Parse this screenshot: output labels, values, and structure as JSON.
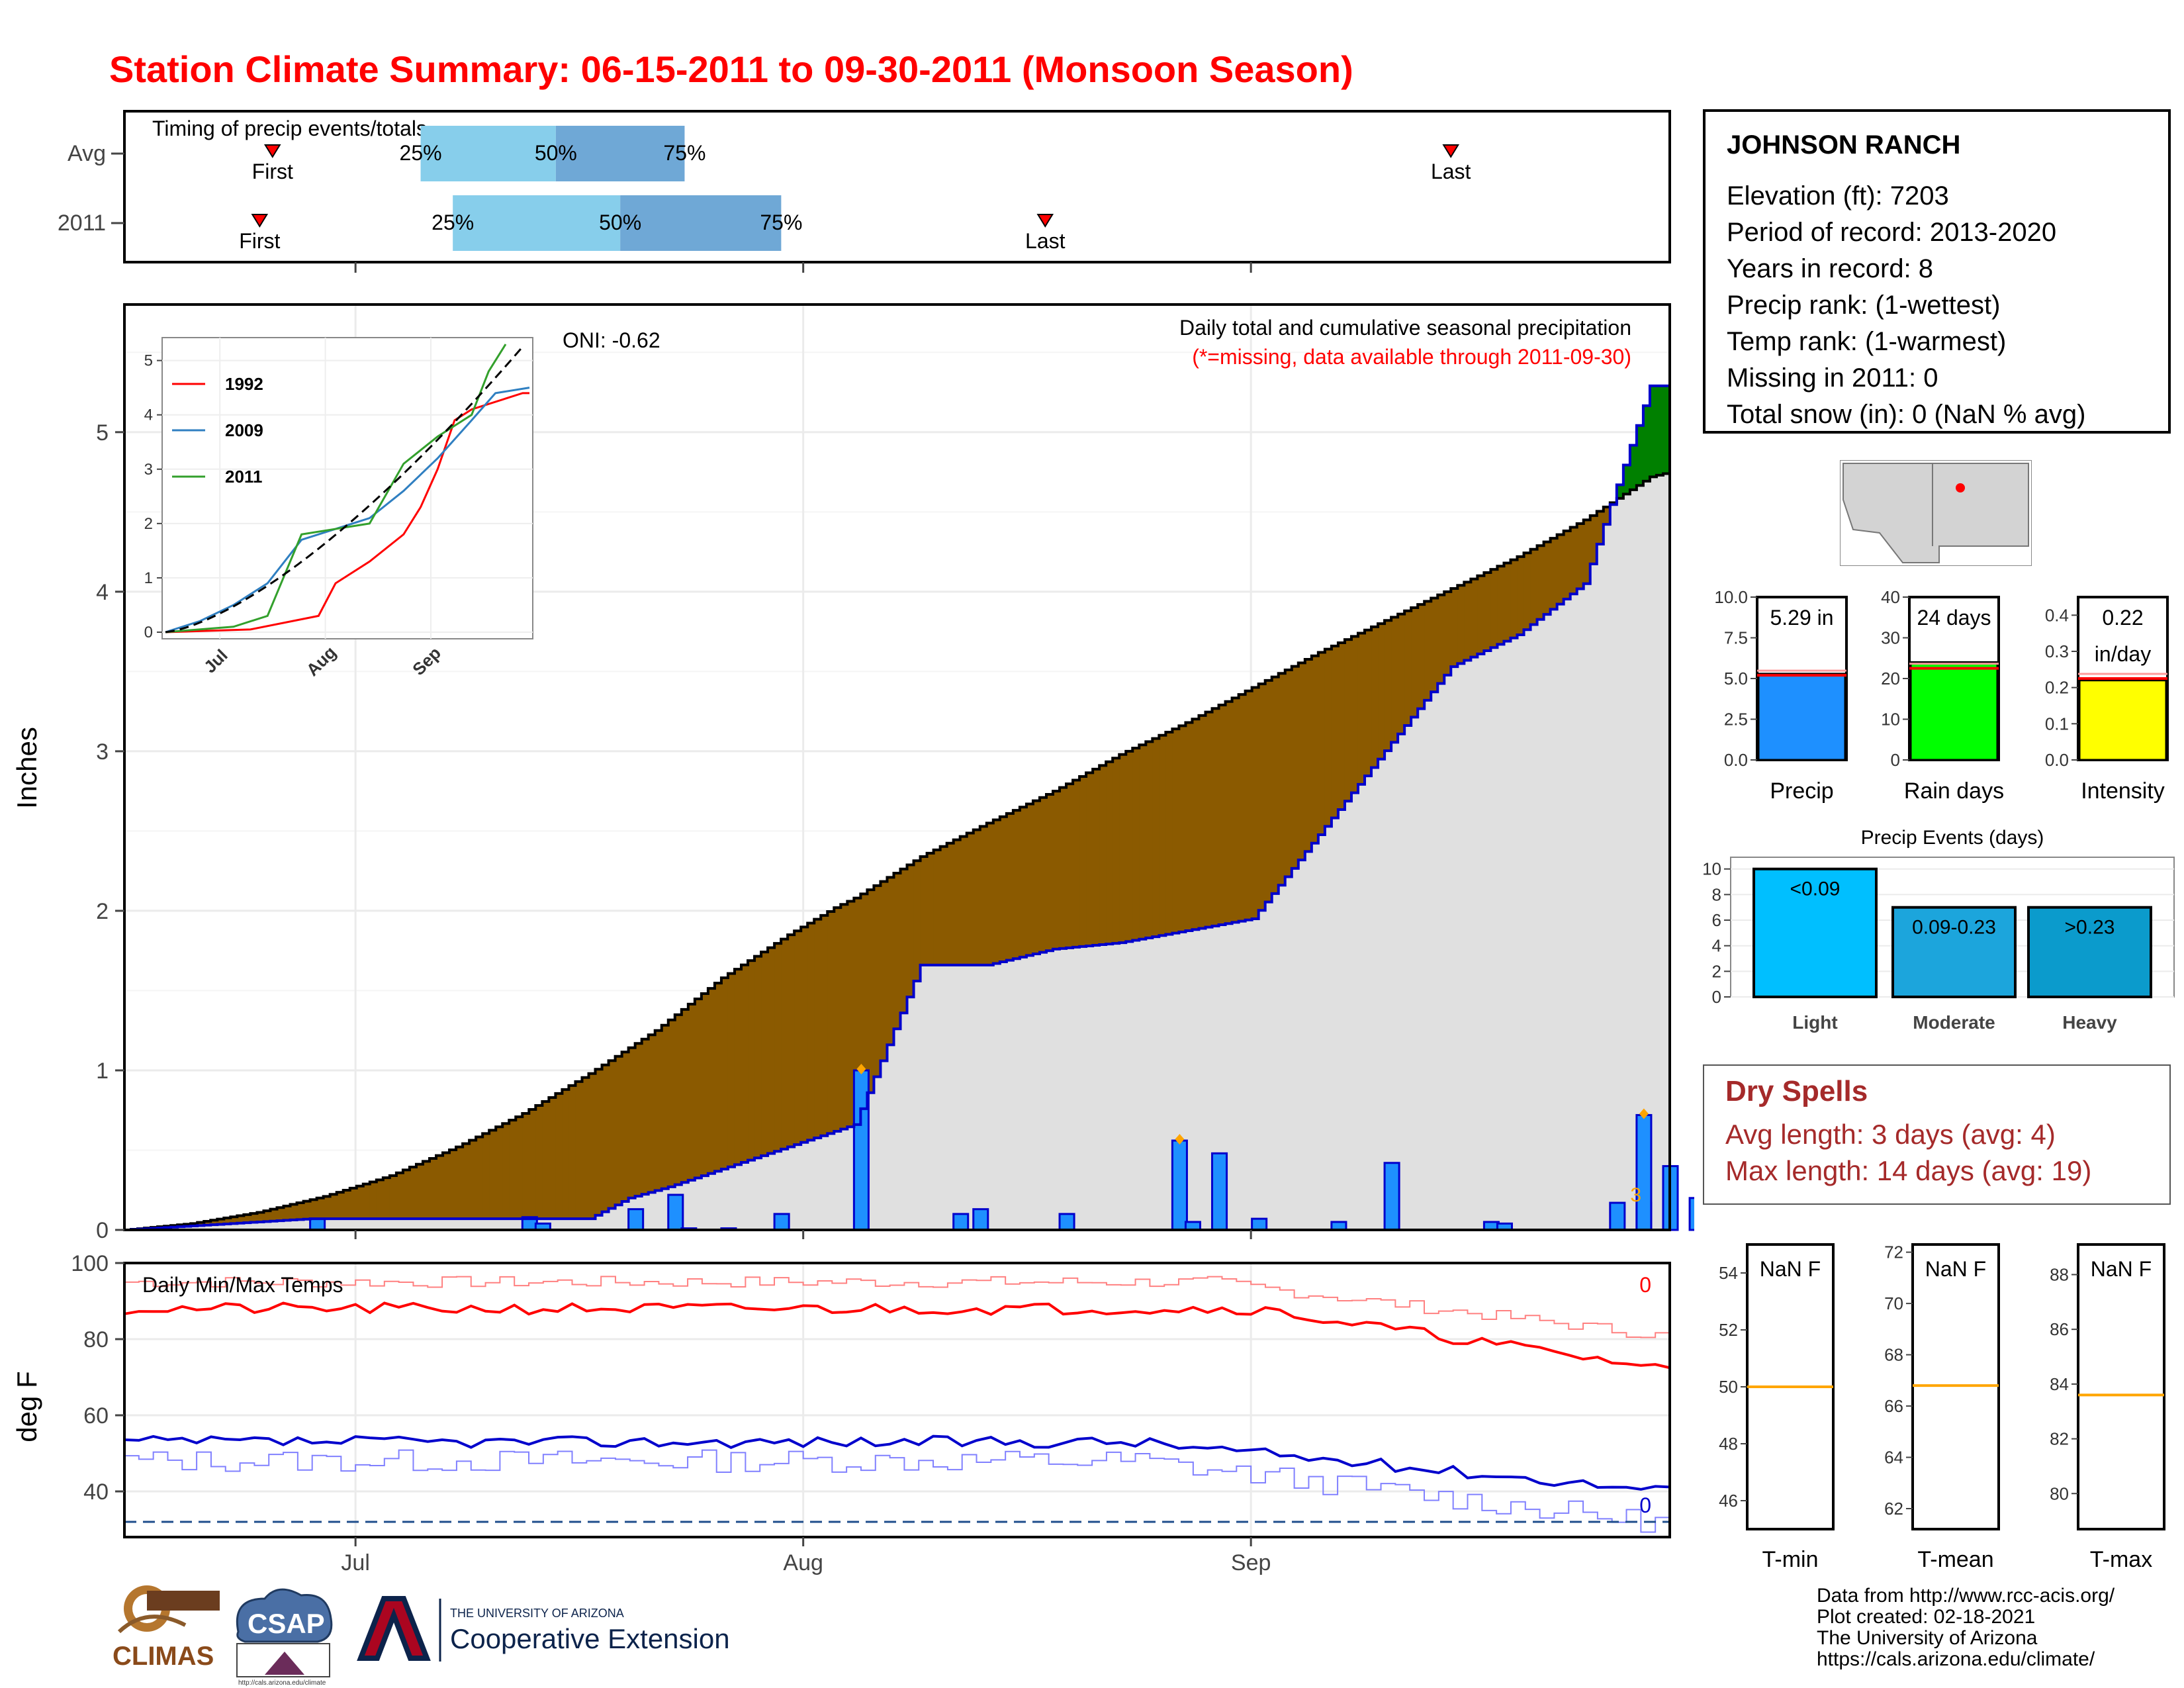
{
  "title": "Station Climate Summary: 06-15-2011 to 09-30-2011 (Monsoon Season)",
  "colors": {
    "title": "#ff0000",
    "brown": "#8b5a00",
    "green": "#008000",
    "blue": "#0000ff",
    "lightblue": "#87ceeb",
    "midblue": "#6fa8d6",
    "bar": "#1e90ff"
  },
  "timing": {
    "label": "Timing of precip events/totals",
    "rows": [
      {
        "name": "Avg",
        "first": "First",
        "last": "Last",
        "p25": "25%",
        "p50": "50%",
        "p75": "75%",
        "first_day": 23,
        "last_day": 206,
        "q25_day": 46,
        "q50_day": 67,
        "q75_day": 87
      },
      {
        "name": "2011",
        "first": "First",
        "last": "Last",
        "p25": "25%",
        "p50": "50%",
        "p75": "75%",
        "first_day": 21,
        "last_day": 143,
        "q25_day": 51,
        "q50_day": 77,
        "q75_day": 102
      }
    ]
  },
  "main": {
    "ylabel": "Inches",
    "title": "Daily total and cumulative seasonal precipitation",
    "subtitle": "(*=missing, data available through 2011-09-30)",
    "oni": "ONI: -0.62",
    "count": "3",
    "x_ticks": [
      "Jul",
      "Aug",
      "Sep"
    ],
    "y_ticks": [
      "0",
      "1",
      "2",
      "3",
      "4",
      "5"
    ]
  },
  "inset": {
    "legend": [
      "1992",
      "2009",
      "2011"
    ],
    "y_ticks": [
      "0",
      "1",
      "2",
      "3",
      "4",
      "5"
    ],
    "x_ticks": [
      "Jul",
      "Aug",
      "Sep"
    ]
  },
  "temps": {
    "label": "Daily Min/Max Temps",
    "ylabel": "deg F",
    "y_ticks": [
      "40",
      "60",
      "80",
      "100"
    ],
    "x_ticks": [
      "Jul",
      "Aug",
      "Sep"
    ],
    "max_count": "0",
    "min_count": "0"
  },
  "station": {
    "name": "JOHNSON RANCH",
    "lines": [
      "Elevation (ft): 7203",
      "Period of record: 2013-2020",
      "Years in record: 8",
      "Precip rank:  (1-wettest)",
      "Temp rank:  (1-warmest)",
      "Missing in 2011: 0",
      "Total snow (in): 0 (NaN % avg)"
    ]
  },
  "gauges": [
    {
      "label": "Precip",
      "value_text": "5.29 in",
      "ticks": [
        "0.0",
        "2.5",
        "5.0",
        "7.5",
        "10.0"
      ],
      "color": "#1e90ff"
    },
    {
      "label": "Rain days",
      "value_text": "24 days",
      "ticks": [
        "0",
        "10",
        "20",
        "30",
        "40"
      ],
      "color": "#00ff00"
    },
    {
      "label": "Intensity",
      "value_text": "0.22\nin/day",
      "ticks": [
        "0.0",
        "0.1",
        "0.2",
        "0.3",
        "0.4"
      ],
      "color": "#ffff00"
    }
  ],
  "events": {
    "title": "Precip Events (days)",
    "ticks": [
      "0",
      "2",
      "4",
      "6",
      "8",
      "10"
    ],
    "bars": [
      {
        "label": "Light",
        "bin": "<0.09",
        "value": 10,
        "color": "#00bfff"
      },
      {
        "label": "Moderate",
        "bin": "0.09-0.23",
        "value": 7,
        "color": "#1ca5dc"
      },
      {
        "label": "Heavy",
        "bin": ">0.23",
        "value": 7,
        "color": "#0b9bcc"
      }
    ]
  },
  "dry": {
    "title": "Dry Spells",
    "avg": "Avg length: 3 days (avg: 4)",
    "max": "Max length: 14 days (avg: 19)"
  },
  "temp_gauges": [
    {
      "label": "T-min",
      "value": "NaN F",
      "ticks": [
        "46",
        "48",
        "50",
        "52",
        "54"
      ]
    },
    {
      "label": "T-mean",
      "value": "NaN F",
      "ticks": [
        "62",
        "64",
        "66",
        "68",
        "70",
        "72"
      ]
    },
    {
      "label": "T-max",
      "value": "NaN F",
      "ticks": [
        "80",
        "82",
        "84",
        "86",
        "88"
      ]
    }
  ],
  "footer": [
    "Data from http://www.rcc-acis.org/",
    "Plot created: 02-18-2021",
    "The University of Arizona",
    "https://cals.arizona.edu/climate/"
  ],
  "logos": {
    "climas": "CLIMAS",
    "csap": "CSAP",
    "csap_url": "http://cals.arizona.edu/climate",
    "ua_small": "THE UNIVERSITY OF ARIZONA",
    "ua_big": "Cooperative Extension"
  },
  "chart_data": [
    {
      "type": "area",
      "title": "Daily total and cumulative seasonal precipitation",
      "ylabel": "Inches",
      "ylim": [
        0,
        5.8
      ],
      "x_range": [
        "2011-06-15",
        "2011-09-30"
      ],
      "series": [
        {
          "name": "avg_cum",
          "day": [
            0,
            10,
            20,
            30,
            40,
            50,
            60,
            70,
            80,
            90,
            100,
            107,
            110,
            120,
            130,
            140,
            150,
            160,
            170,
            180,
            190,
            200,
            210,
            220,
            230,
            233
          ],
          "values": [
            0,
            0.04,
            0.11,
            0.21,
            0.34,
            0.52,
            0.73,
            0.98,
            1.25,
            1.58,
            1.85,
            2.02,
            2.08,
            2.34,
            2.55,
            2.75,
            2.98,
            3.18,
            3.4,
            3.62,
            3.82,
            4.02,
            4.22,
            4.45,
            4.72,
            4.75
          ]
        },
        {
          "name": "2011_cum",
          "day": [
            0,
            28,
            60,
            62,
            70,
            76,
            82,
            110,
            120,
            130,
            140,
            150,
            170,
            200,
            210,
            220,
            230,
            233
          ],
          "values": [
            0,
            0.07,
            0.07,
            0.07,
            0.07,
            0.2,
            0.27,
            0.66,
            1.66,
            1.66,
            1.76,
            1.8,
            1.95,
            3.53,
            3.73,
            4.05,
            5.29,
            5.29
          ]
        },
        {
          "name": "2011_daily",
          "day": [
            28,
            60,
            62,
            76,
            82,
            84,
            90,
            98,
            110,
            125,
            128,
            141,
            158,
            160,
            164,
            170,
            182,
            190,
            205,
            207,
            224,
            228,
            228,
            232,
            236
          ],
          "values": [
            0.07,
            0.08,
            0.04,
            0.13,
            0.22,
            0.01,
            0.01,
            0.1,
            1.0,
            0.1,
            0.13,
            0.1,
            0.56,
            0.05,
            0.48,
            0.07,
            0.05,
            0.42,
            0.05,
            0.04,
            0.17,
            0.17,
            0.72,
            0.4,
            0.2
          ]
        }
      ]
    },
    {
      "type": "line",
      "title": "Daily Min/Max Temps",
      "ylabel": "deg F",
      "ylim": [
        28,
        100
      ],
      "series": [
        {
          "name": "max_2011",
          "start": 86,
          "end": 72
        },
        {
          "name": "min_2011",
          "start": 44,
          "end": 40
        },
        {
          "name": "freezing",
          "value": 32
        }
      ]
    }
  ]
}
